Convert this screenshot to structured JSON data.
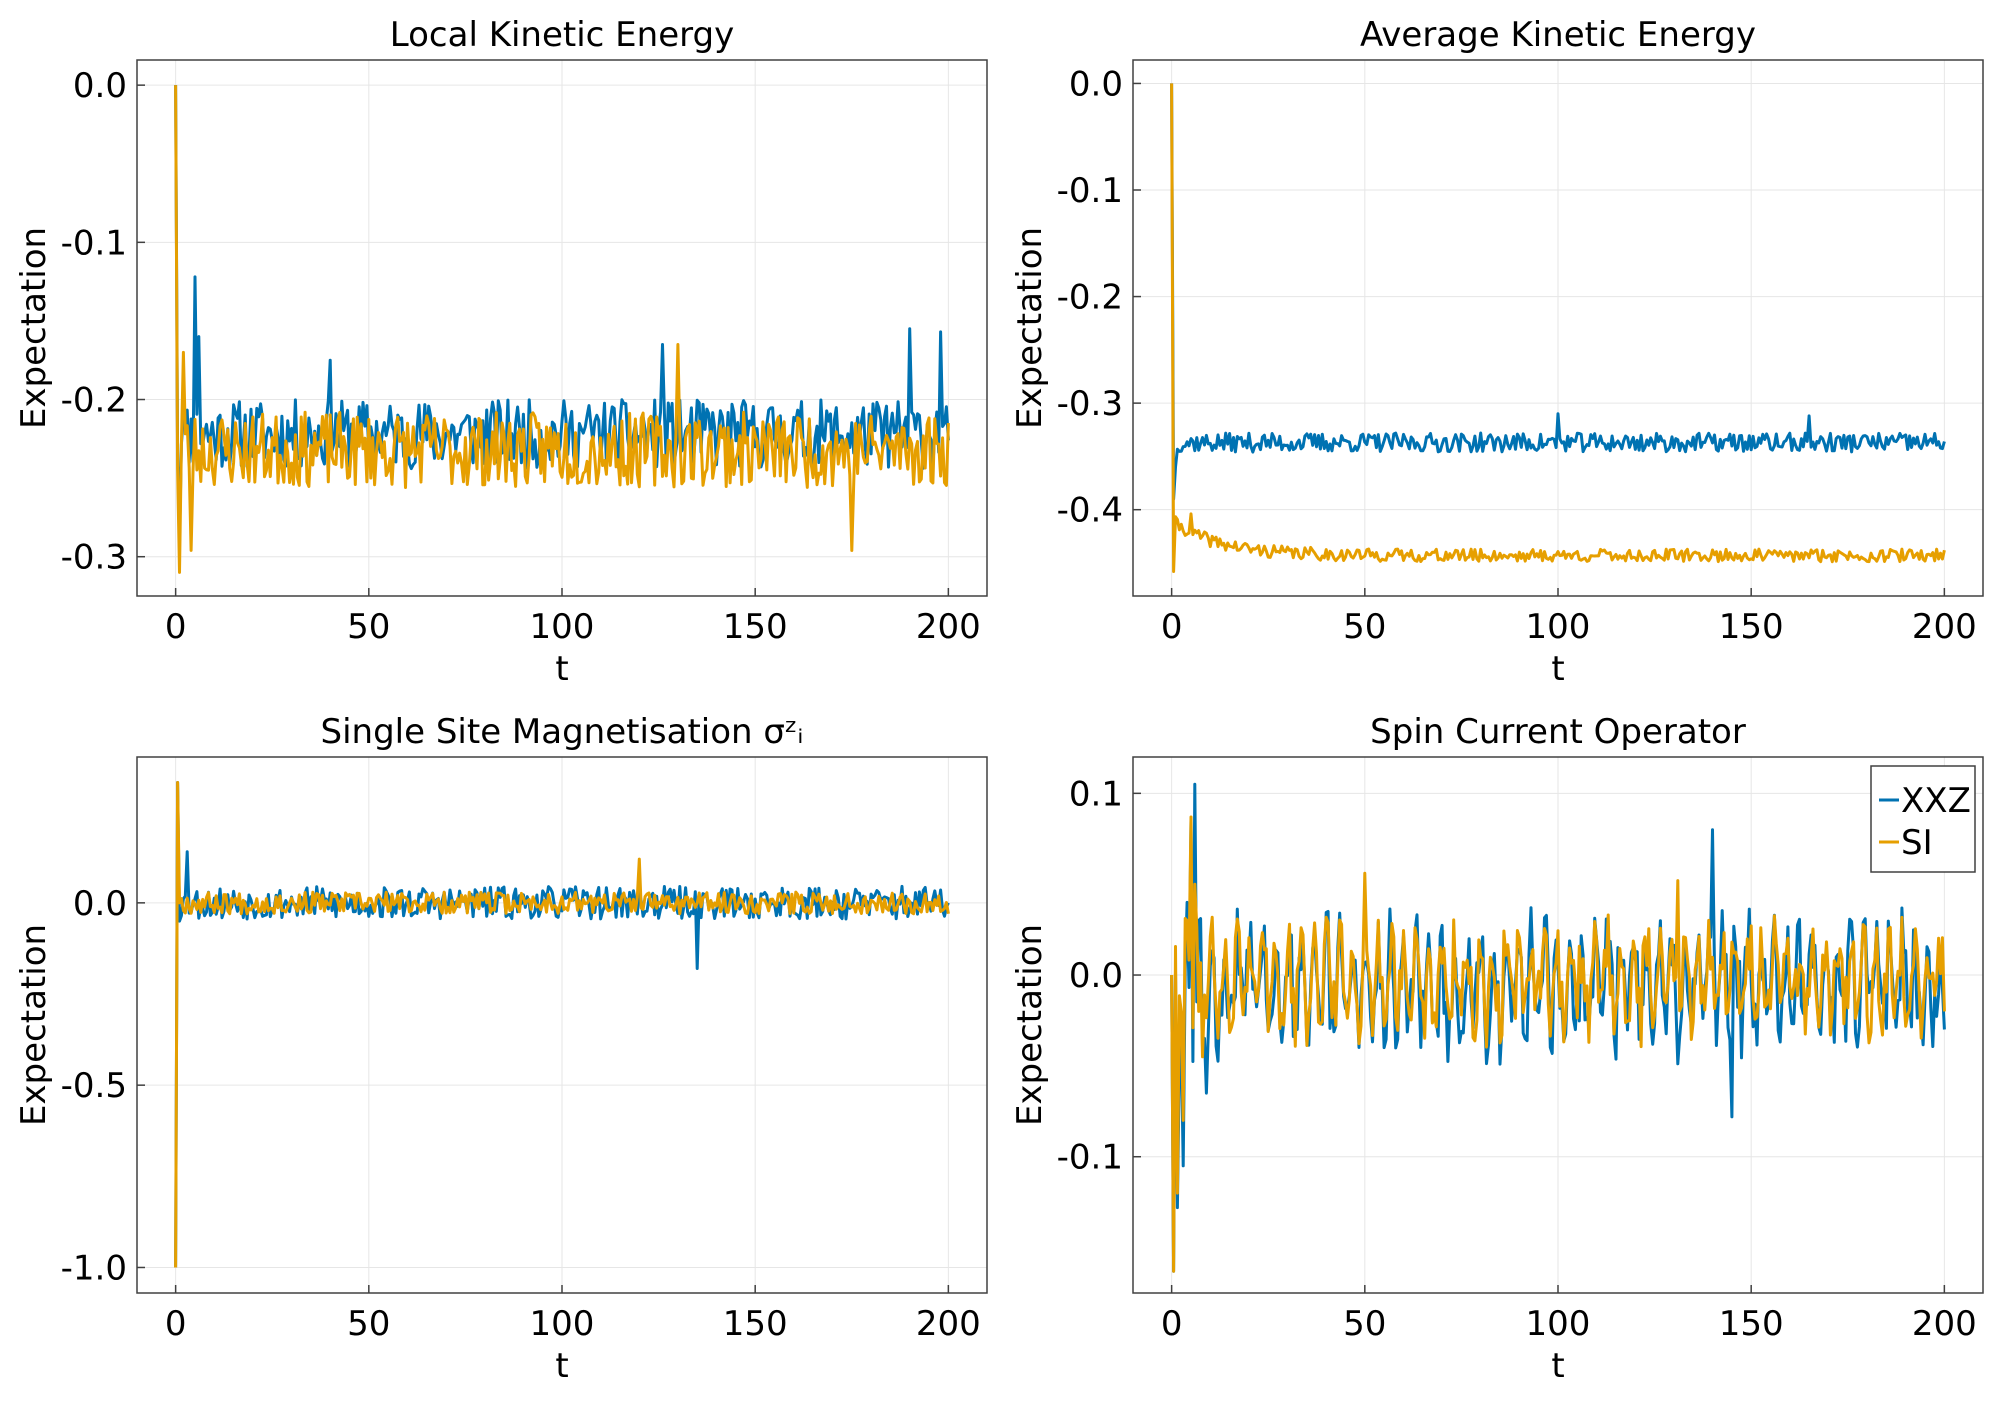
{
  "figure": {
    "colors": {
      "XXZ": "#0072b2",
      "SI": "#e69f00",
      "grid": "#e6e6e6",
      "frame": "#404040"
    }
  },
  "chart_data": [
    {
      "id": "local-ke",
      "type": "line",
      "title": "Local Kinetic Energy",
      "xlabel": "t",
      "ylabel": "Expectation",
      "xlim": [
        -10,
        210
      ],
      "ylim": [
        -0.325,
        0.016
      ],
      "xticks": [
        0,
        50,
        100,
        150,
        200
      ],
      "xtick_labels": [
        "0",
        "50",
        "100",
        "150",
        "200"
      ],
      "yticks": [
        0.0,
        -0.1,
        -0.2,
        -0.3
      ],
      "ytick_labels": [
        "0.0",
        "-0.1",
        "-0.2",
        "-0.3"
      ],
      "grid": true,
      "series": [
        {
          "name": "XXZ",
          "color": "#0072b2",
          "gen": {
            "kind": "noise",
            "t0": 0,
            "t1": 200,
            "n": 400,
            "start": 0.0,
            "base": -0.222,
            "amp": 0.022,
            "seed": 11,
            "spikes": [
              [
                1,
                -0.29
              ],
              [
                2,
                -0.21
              ],
              [
                5,
                -0.122
              ],
              [
                6,
                -0.16
              ],
              [
                40,
                -0.175
              ],
              [
                126,
                -0.165
              ],
              [
                190,
                -0.155
              ],
              [
                198,
                -0.157
              ],
              [
                200,
                -0.226
              ]
            ]
          }
        },
        {
          "name": "SI",
          "color": "#e69f00",
          "gen": {
            "kind": "noise",
            "t0": 0,
            "t1": 200,
            "n": 400,
            "start": 0.0,
            "base": -0.232,
            "amp": 0.024,
            "seed": 23,
            "spikes": [
              [
                1,
                -0.31
              ],
              [
                2,
                -0.17
              ],
              [
                4,
                -0.296
              ],
              [
                130,
                -0.165
              ],
              [
                175,
                -0.296
              ],
              [
                200,
                -0.215
              ]
            ]
          }
        }
      ]
    },
    {
      "id": "avg-ke",
      "type": "line",
      "title": "Average Kinetic Energy",
      "xlabel": "t",
      "ylabel": "Expectation",
      "xlim": [
        -10,
        210
      ],
      "ylim": [
        -0.481,
        0.022
      ],
      "xticks": [
        0,
        50,
        100,
        150,
        200
      ],
      "xtick_labels": [
        "0",
        "50",
        "100",
        "150",
        "200"
      ],
      "yticks": [
        0.0,
        -0.1,
        -0.2,
        -0.3,
        -0.4
      ],
      "ytick_labels": [
        "0.0",
        "-0.1",
        "-0.2",
        "-0.3",
        "-0.4"
      ],
      "grid": true,
      "series": [
        {
          "name": "XXZ",
          "color": "#0072b2",
          "gen": {
            "kind": "noise",
            "t0": 0,
            "t1": 200,
            "n": 400,
            "start": 0.0,
            "base": -0.337,
            "amp": 0.009,
            "seed": 37,
            "spikes": [
              [
                0.5,
                -0.39
              ],
              [
                1,
                -0.36
              ],
              [
                100,
                -0.31
              ],
              [
                165,
                -0.312
              ],
              [
                200,
                -0.336
              ]
            ]
          }
        },
        {
          "name": "SI",
          "color": "#e69f00",
          "gen": {
            "kind": "decay",
            "t0": 0,
            "t1": 200,
            "n": 400,
            "start": 0.0,
            "base": -0.443,
            "amp": 0.006,
            "seed": 41,
            "decay_from": -0.41,
            "tau": 12,
            "spikes": [
              [
                0.5,
                -0.458
              ],
              [
                5,
                -0.404
              ],
              [
                200,
                -0.438
              ]
            ]
          }
        }
      ]
    },
    {
      "id": "single-site-mag",
      "type": "line",
      "title": "Single Site Magnetisation σᶻᵢ",
      "xlabel": "t",
      "ylabel": "Expectation",
      "xlim": [
        -10,
        210
      ],
      "ylim": [
        -1.07,
        0.4
      ],
      "xticks": [
        0,
        50,
        100,
        150,
        200
      ],
      "xtick_labels": [
        "0",
        "50",
        "100",
        "150",
        "200"
      ],
      "yticks": [
        0.0,
        -0.5,
        -1.0
      ],
      "ytick_labels": [
        "0.0",
        "-0.5",
        "-1.0"
      ],
      "grid": true,
      "series": [
        {
          "name": "XXZ",
          "color": "#0072b2",
          "gen": {
            "kind": "noise",
            "t0": 0,
            "t1": 200,
            "n": 400,
            "start": -1.0,
            "base": 0.0,
            "amp": 0.045,
            "seed": 53,
            "spikes": [
              [
                0.5,
                0.33
              ],
              [
                1,
                -0.05
              ],
              [
                3,
                0.14
              ],
              [
                135,
                -0.18
              ],
              [
                200,
                0.0
              ]
            ]
          }
        },
        {
          "name": "SI",
          "color": "#e69f00",
          "gen": {
            "kind": "noise",
            "t0": 0,
            "t1": 200,
            "n": 400,
            "start": -1.0,
            "base": 0.0,
            "amp": 0.03,
            "seed": 67,
            "spikes": [
              [
                0.5,
                0.33
              ],
              [
                1,
                0.0
              ],
              [
                120,
                0.12
              ],
              [
                200,
                -0.03
              ]
            ]
          }
        }
      ]
    },
    {
      "id": "spin-current",
      "type": "line",
      "title": "Spin Current Operator",
      "xlabel": "t",
      "ylabel": "Expectation",
      "xlim": [
        -10,
        210
      ],
      "ylim": [
        -0.175,
        0.12
      ],
      "xticks": [
        0,
        50,
        100,
        150,
        200
      ],
      "xtick_labels": [
        "0",
        "50",
        "100",
        "150",
        "200"
      ],
      "yticks": [
        0.1,
        0.0,
        -0.1
      ],
      "ytick_labels": [
        "0.1",
        "0.0",
        "-0.1"
      ],
      "grid": true,
      "legend": {
        "position": "top-right",
        "entries": [
          "XXZ",
          "SI"
        ]
      },
      "series": [
        {
          "name": "XXZ",
          "color": "#0072b2",
          "gen": {
            "kind": "oscill",
            "t0": 0,
            "t1": 200,
            "n": 400,
            "start": 0.0,
            "base": -0.005,
            "amp": 0.028,
            "seed": 79,
            "spikes": [
              [
                0.5,
                -0.163
              ],
              [
                1.5,
                -0.128
              ],
              [
                3,
                -0.105
              ],
              [
                4,
                0.04
              ],
              [
                5,
                0.085
              ],
              [
                6,
                0.105
              ],
              [
                7,
                0.03
              ],
              [
                8,
                -0.04
              ],
              [
                9,
                -0.065
              ],
              [
                140,
                0.08
              ],
              [
                145,
                -0.078
              ],
              [
                200,
                -0.03
              ]
            ]
          }
        },
        {
          "name": "SI",
          "color": "#e69f00",
          "gen": {
            "kind": "oscill",
            "t0": 0,
            "t1": 200,
            "n": 400,
            "start": 0.0,
            "base": -0.002,
            "amp": 0.024,
            "seed": 83,
            "spikes": [
              [
                0.5,
                -0.163
              ],
              [
                1.5,
                -0.12
              ],
              [
                3,
                -0.08
              ],
              [
                4,
                0.03
              ],
              [
                5,
                0.087
              ],
              [
                6,
                0.05
              ],
              [
                7,
                -0.02
              ],
              [
                8,
                -0.045
              ],
              [
                50,
                0.056
              ],
              [
                131,
                0.052
              ],
              [
                200,
                -0.02
              ]
            ]
          }
        }
      ]
    }
  ]
}
